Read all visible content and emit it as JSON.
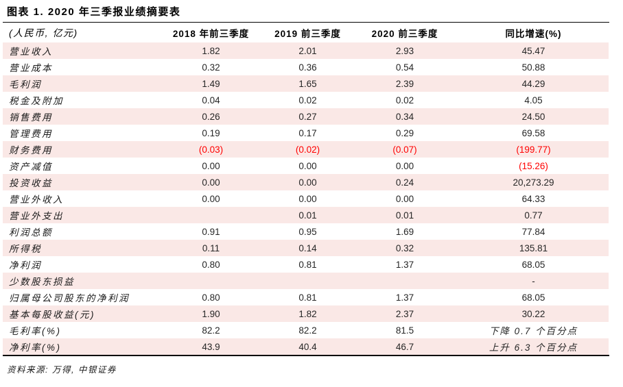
{
  "title": "图表 1. 2020 年三季报业绩摘要表",
  "source": "资料来源: 万得, 中银证券",
  "colors": {
    "stripe_pink": "#FAE8E6",
    "negative_red": "#FF0000",
    "rule_black": "#000000"
  },
  "chart_data": {
    "type": "table",
    "title": "图表 1. 2020 年三季报业绩摘要表",
    "columns": [
      "(人民币, 亿元)",
      "2018 年前三季度",
      "2019 前三季度",
      "2020 前三季度",
      "同比增速(%)"
    ],
    "rows": [
      {
        "label": "营业收入",
        "values": [
          "1.82",
          "2.01",
          "2.93",
          "45.47"
        ],
        "red": [
          false,
          false,
          false,
          false
        ]
      },
      {
        "label": "营业成本",
        "values": [
          "0.32",
          "0.36",
          "0.54",
          "50.88"
        ],
        "red": [
          false,
          false,
          false,
          false
        ]
      },
      {
        "label": "毛利润",
        "values": [
          "1.49",
          "1.65",
          "2.39",
          "44.29"
        ],
        "red": [
          false,
          false,
          false,
          false
        ]
      },
      {
        "label": "税金及附加",
        "values": [
          "0.04",
          "0.02",
          "0.02",
          "4.05"
        ],
        "red": [
          false,
          false,
          false,
          false
        ]
      },
      {
        "label": "销售费用",
        "values": [
          "0.26",
          "0.27",
          "0.34",
          "24.50"
        ],
        "red": [
          false,
          false,
          false,
          false
        ]
      },
      {
        "label": "管理费用",
        "values": [
          "0.19",
          "0.17",
          "0.29",
          "69.58"
        ],
        "red": [
          false,
          false,
          false,
          false
        ]
      },
      {
        "label": "财务费用",
        "values": [
          "(0.03)",
          "(0.02)",
          "(0.07)",
          "(199.77)"
        ],
        "red": [
          true,
          true,
          true,
          true
        ]
      },
      {
        "label": "资产减值",
        "values": [
          "0.00",
          "0.00",
          "0.00",
          "(15.26)"
        ],
        "red": [
          false,
          false,
          false,
          true
        ]
      },
      {
        "label": "投资收益",
        "values": [
          "0.00",
          "0.00",
          "0.24",
          "20,273.29"
        ],
        "red": [
          false,
          false,
          false,
          false
        ]
      },
      {
        "label": "营业外收入",
        "values": [
          "0.00",
          "0.00",
          "0.00",
          "64.33"
        ],
        "red": [
          false,
          false,
          false,
          false
        ]
      },
      {
        "label": "营业外支出",
        "values": [
          "",
          "0.01",
          "0.01",
          "0.77"
        ],
        "red": [
          false,
          false,
          false,
          false
        ]
      },
      {
        "label": "利润总额",
        "values": [
          "0.91",
          "0.95",
          "1.69",
          "77.84"
        ],
        "red": [
          false,
          false,
          false,
          false
        ]
      },
      {
        "label": "所得税",
        "values": [
          "0.11",
          "0.14",
          "0.32",
          "135.81"
        ],
        "red": [
          false,
          false,
          false,
          false
        ]
      },
      {
        "label": "净利润",
        "values": [
          "0.80",
          "0.81",
          "1.37",
          "68.05"
        ],
        "red": [
          false,
          false,
          false,
          false
        ]
      },
      {
        "label": "少数股东损益",
        "values": [
          "",
          "",
          "",
          "-"
        ],
        "red": [
          false,
          false,
          false,
          false
        ]
      },
      {
        "label": "归属母公司股东的净利润",
        "values": [
          "0.80",
          "0.81",
          "1.37",
          "68.05"
        ],
        "red": [
          false,
          false,
          false,
          false
        ]
      },
      {
        "label": "基本每股收益(元)",
        "values": [
          "1.90",
          "1.82",
          "2.37",
          "30.22"
        ],
        "red": [
          false,
          false,
          false,
          false
        ]
      },
      {
        "label": "毛利率(%)",
        "values": [
          "82.2",
          "82.2",
          "81.5",
          "下降 0.7 个百分点"
        ],
        "red": [
          false,
          false,
          false,
          false
        ]
      },
      {
        "label": "净利率(%)",
        "values": [
          "43.9",
          "40.4",
          "46.7",
          "上升 6.3 个百分点"
        ],
        "red": [
          false,
          false,
          false,
          false
        ]
      }
    ]
  }
}
